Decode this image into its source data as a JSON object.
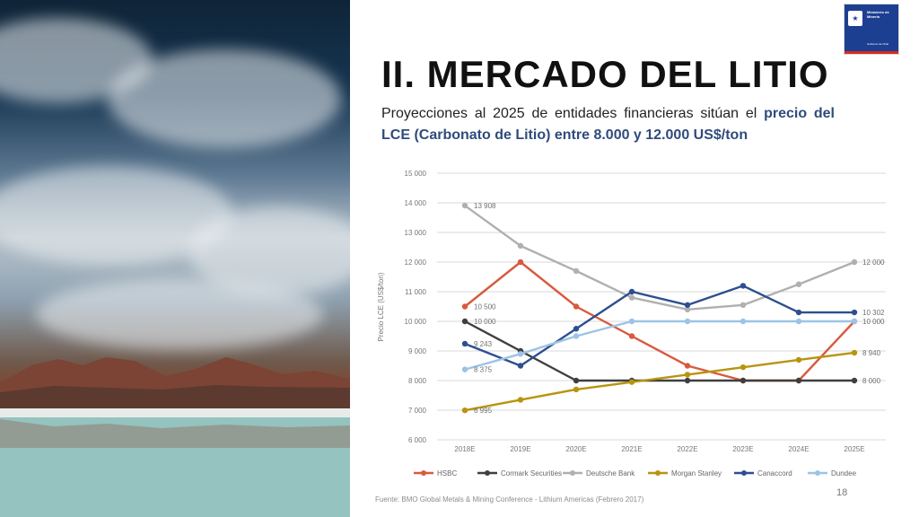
{
  "logo": {
    "symbol": "★",
    "lines": [
      "Ministerio de",
      "Minería"
    ],
    "government": "Gobierno de Chile",
    "colors": {
      "blue": "#1d3f91",
      "red": "#d52b1e"
    }
  },
  "title": "II. MERCADO DEL LITIO",
  "subtitle": {
    "text": "Proyecciones al 2025 de entidades financieras sitúan el ",
    "highlight": "precio del LCE (Carbonato de Litio) entre 8.000 y 12.000 US$/ton"
  },
  "source": "Fuente: BMO Global Metals & Mining Conference - Lithium Americas (Febrero 2017)",
  "page_number": "18",
  "chart_data": {
    "type": "line",
    "categories": [
      "2018E",
      "2019E",
      "2020E",
      "2021E",
      "2022E",
      "2023E",
      "2024E",
      "2025E"
    ],
    "ylabel": "Precio LCE (US$/ton)",
    "ylim": [
      6000,
      15000
    ],
    "yticks": [
      "6 000",
      "7 000",
      "8 000",
      "9 000",
      "10 000",
      "11 000",
      "12 000",
      "13 000",
      "14 000",
      "15 000"
    ],
    "grid": true,
    "legend": "bottom",
    "series": [
      {
        "name": "HSBC",
        "color": "#d85a3e",
        "values": [
          10500,
          12000,
          10500,
          9500,
          8500,
          8000,
          8000,
          10000
        ]
      },
      {
        "name": "Cormark Securities",
        "color": "#3f3f3f",
        "values": [
          10000,
          9000,
          8000,
          8000,
          8000,
          8000,
          8000,
          8000
        ]
      },
      {
        "name": "Deutsche Bank",
        "color": "#b0b0b0",
        "values": [
          13908,
          12550,
          11700,
          10800,
          10400,
          10550,
          11250,
          12000
        ]
      },
      {
        "name": "Morgan Stanley",
        "color": "#b8940e",
        "values": [
          6995,
          7350,
          7700,
          7950,
          8200,
          8450,
          8700,
          8940
        ]
      },
      {
        "name": "Canaccord",
        "color": "#2d4f8f",
        "values": [
          9243,
          8500,
          9750,
          11000,
          10550,
          11200,
          10302,
          10302
        ]
      },
      {
        "name": "Dundee",
        "color": "#9dc3e6",
        "values": [
          8375,
          8900,
          9500,
          10000,
          10000,
          10000,
          10000,
          10000
        ]
      }
    ],
    "annotations": [
      {
        "text": "13 908",
        "x": "2018E",
        "y": 13908
      },
      {
        "text": "10 500",
        "x": "2018E",
        "y": 10500
      },
      {
        "text": "10 000",
        "x": "2018E",
        "y": 10000
      },
      {
        "text": "9 243",
        "x": "2018E",
        "y": 9243
      },
      {
        "text": "8 375",
        "x": "2018E",
        "y": 8375
      },
      {
        "text": "6 995",
        "x": "2018E",
        "y": 6995
      },
      {
        "text": "12 000",
        "x": "2025E",
        "y": 12000
      },
      {
        "text": "10 302",
        "x": "2025E",
        "y": 10302
      },
      {
        "text": "10 000",
        "x": "2025E",
        "y": 10000
      },
      {
        "text": "8 940",
        "x": "2025E",
        "y": 8940
      },
      {
        "text": "8 000",
        "x": "2025E",
        "y": 8000
      }
    ]
  }
}
